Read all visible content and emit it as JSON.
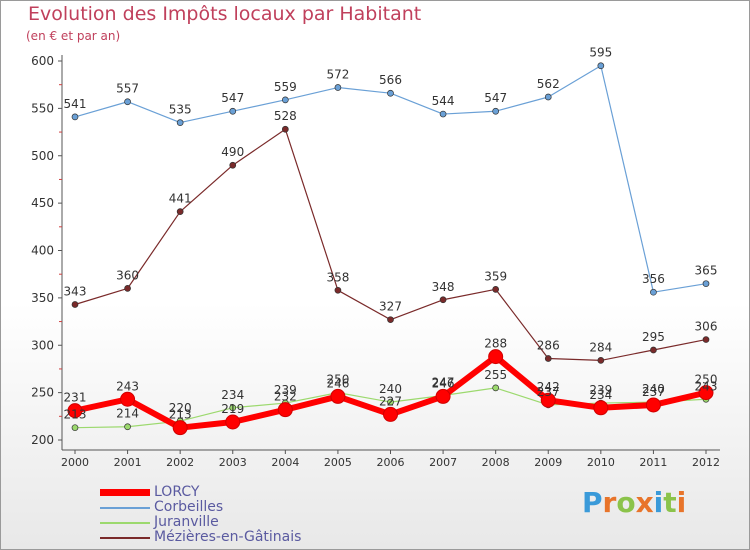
{
  "title": "Evolution des Impôts locaux par Habitant",
  "subtitle": "(en € et par an)",
  "logo_text": "Proxiti",
  "chart_data": {
    "type": "line",
    "title": "Evolution des Impôts locaux par Habitant",
    "subtitle": "(en € et par an)",
    "xlabel": "",
    "ylabel": "",
    "ylim": [
      200,
      600
    ],
    "yticks": [
      200,
      250,
      300,
      350,
      400,
      450,
      500,
      550,
      600
    ],
    "grid": false,
    "legend_position": "bottom-left",
    "x": [
      "2000",
      "2001",
      "2002",
      "2003",
      "2004",
      "2005",
      "2006",
      "2007",
      "2008",
      "2009",
      "2010",
      "2011",
      "2012"
    ],
    "series": [
      {
        "name": "LORCY",
        "color": "#ff0000",
        "values": [
          231,
          243,
          213,
          219,
          232,
          246,
          227,
          246,
          288,
          242,
          234,
          237,
          250
        ]
      },
      {
        "name": "Corbeilles",
        "color": "#6aa0d6",
        "values": [
          541,
          557,
          535,
          547,
          559,
          572,
          566,
          544,
          547,
          562,
          595,
          356,
          365
        ]
      },
      {
        "name": "Juranville",
        "color": "#9cd96e",
        "values": [
          213,
          214,
          220,
          234,
          239,
          250,
          240,
          247,
          255,
          237,
          239,
          240,
          243
        ]
      },
      {
        "name": "Mézières-en-Gâtinais",
        "color": "#7a2a2a",
        "values": [
          343,
          360,
          441,
          490,
          528,
          358,
          327,
          348,
          359,
          286,
          284,
          295,
          306
        ]
      }
    ]
  }
}
